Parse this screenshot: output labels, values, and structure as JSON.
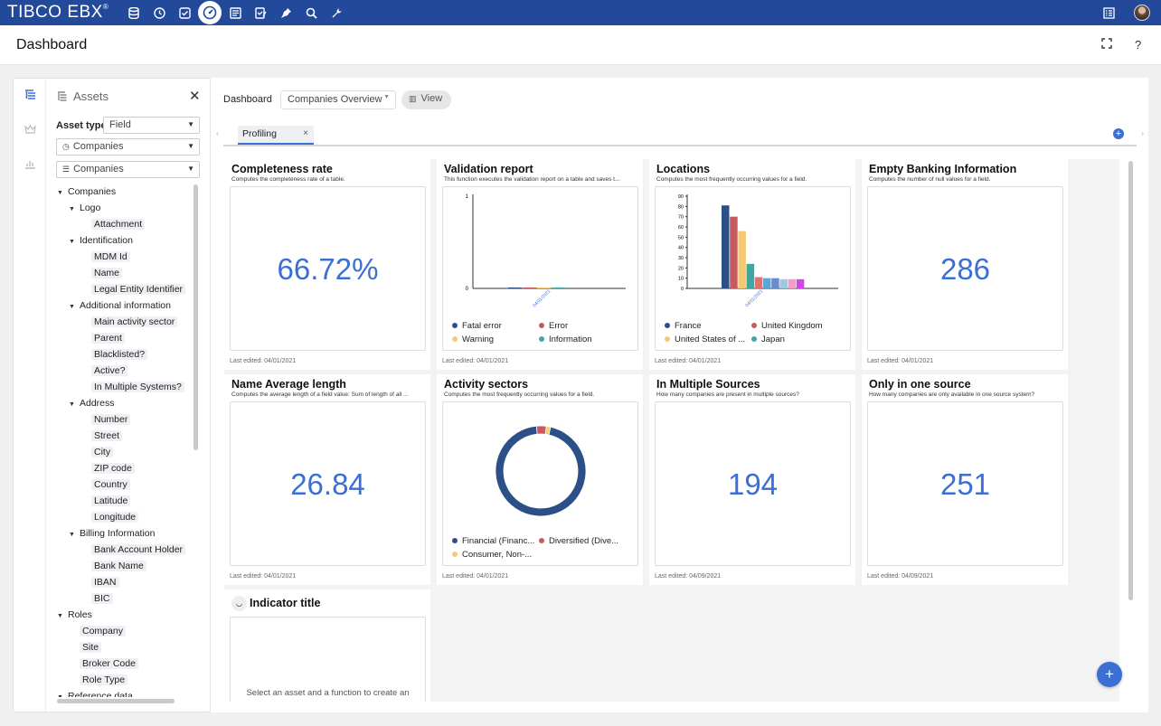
{
  "app": {
    "brand": "TIBCO EBX",
    "brand_mark": "®"
  },
  "topbar": {
    "icons": [
      "database-icon",
      "clock-icon",
      "checklist-icon",
      "dashboard-icon",
      "data-list-icon",
      "edit-check-icon",
      "plugin-icon",
      "search-icon",
      "wrench-icon"
    ],
    "right_icons": [
      "tasks-icon",
      "avatar"
    ],
    "active": "dashboard-icon"
  },
  "header": {
    "title": "Dashboard",
    "icons": [
      "fullscreen-icon",
      "help-icon"
    ],
    "help": "?"
  },
  "assets": {
    "title": "Assets",
    "asset_type_label": "Asset type",
    "asset_type_value": "Field",
    "dataspace_value": "Companies",
    "dataset_value": "Companies",
    "tree": [
      {
        "label": "Companies",
        "level": 0,
        "expand": true
      },
      {
        "label": "Logo",
        "level": 1,
        "expand": true
      },
      {
        "label": "Attachment",
        "level": 2,
        "leaf": true
      },
      {
        "label": "Identification",
        "level": 1,
        "expand": true
      },
      {
        "label": "MDM Id",
        "level": 2,
        "leaf": true
      },
      {
        "label": "Name",
        "level": 2,
        "leaf": true
      },
      {
        "label": "Legal Entity Identifier",
        "level": 2,
        "leaf": true
      },
      {
        "label": "Additional information",
        "level": 1,
        "expand": true
      },
      {
        "label": "Main activity sector",
        "level": 2,
        "leaf": true
      },
      {
        "label": "Parent",
        "level": 2,
        "leaf": true
      },
      {
        "label": "Blacklisted?",
        "level": 2,
        "leaf": true
      },
      {
        "label": "Active?",
        "level": 2,
        "leaf": true
      },
      {
        "label": "In Multiple Systems?",
        "level": 2,
        "leaf": true
      },
      {
        "label": "Address",
        "level": 1,
        "expand": true
      },
      {
        "label": "Number",
        "level": 2,
        "leaf": true
      },
      {
        "label": "Street",
        "level": 2,
        "leaf": true
      },
      {
        "label": "City",
        "level": 2,
        "leaf": true
      },
      {
        "label": "ZIP code",
        "level": 2,
        "leaf": true
      },
      {
        "label": "Country",
        "level": 2,
        "leaf": true
      },
      {
        "label": "Latitude",
        "level": 2,
        "leaf": true
      },
      {
        "label": "Longitude",
        "level": 2,
        "leaf": true
      },
      {
        "label": "Billing Information",
        "level": 1,
        "expand": true
      },
      {
        "label": "Bank Account Holder",
        "level": 2,
        "leaf": true
      },
      {
        "label": "Bank Name",
        "level": 2,
        "leaf": true
      },
      {
        "label": "IBAN",
        "level": 2,
        "leaf": true
      },
      {
        "label": "BIC",
        "level": 2,
        "leaf": true
      },
      {
        "label": "Roles",
        "level": 0,
        "expand": true
      },
      {
        "label": "Company",
        "level": 1,
        "leaf": true
      },
      {
        "label": "Site",
        "level": 1,
        "leaf": true
      },
      {
        "label": "Broker Code",
        "level": 1,
        "leaf": true
      },
      {
        "label": "Role Type",
        "level": 1,
        "leaf": true
      },
      {
        "label": "Reference data",
        "level": 0,
        "expand": true
      }
    ]
  },
  "toolbar": {
    "dashboard_label": "Dashboard",
    "dashboard_select": "Companies Overview",
    "view_label": "View"
  },
  "tabs": [
    {
      "label": "Profiling",
      "close": "×"
    }
  ],
  "accent": "#3b6fd4",
  "cards": {
    "completeness": {
      "title": "Completeness rate",
      "desc": "Computes the completeness rate of a table.",
      "value": "66.72%",
      "edited": "Last edited: 04/01/2021"
    },
    "validation": {
      "title": "Validation report",
      "desc": "This function executes the validation report on a table and saves t...",
      "edited": "Last edited: 04/01/2021",
      "y_ticks": [
        "1",
        "0"
      ],
      "x_tick": "04/01/2021",
      "legend": [
        {
          "label": "Fatal error",
          "color": "#2b4f87"
        },
        {
          "label": "Error",
          "color": "#c45b63"
        },
        {
          "label": "Warning",
          "color": "#f5c976"
        },
        {
          "label": "Information",
          "color": "#41a6a0"
        }
      ]
    },
    "locations": {
      "title": "Locations",
      "desc": "Computes the most frequently occurring values for a field.",
      "edited": "Last edited: 04/01/2021",
      "legend": [
        {
          "label": "France",
          "color": "#2b4f87"
        },
        {
          "label": "United Kingdom",
          "color": "#c45b63"
        },
        {
          "label": "United States of ...",
          "color": "#f5c976"
        },
        {
          "label": "Japan",
          "color": "#41a6a0"
        }
      ]
    },
    "empty_banking": {
      "title": "Empty Banking Information",
      "desc": "Computes the number of null values for a field.",
      "value": "286",
      "edited": "Last edited: 04/01/2021"
    },
    "name_avg": {
      "title": "Name Average length",
      "desc": "Computes the average length of a field value: Sum of length of all ...",
      "value": "26.84",
      "edited": "Last edited: 04/01/2021"
    },
    "activity": {
      "title": "Activity sectors",
      "desc": "Computes the most frequently occurring values for a field.",
      "edited": "Last edited: 04/01/2021",
      "legend": [
        {
          "label": "Financial (Financ...",
          "color": "#2b4f87"
        },
        {
          "label": "Diversified (Dive...",
          "color": "#c45b63"
        },
        {
          "label": "Consumer, Non-...",
          "color": "#f5c976"
        }
      ]
    },
    "multi_sources": {
      "title": "In Multiple Sources",
      "desc": "How many companies are present in multiple sources?",
      "value": "194",
      "edited": "Last edited: 04/09/2021"
    },
    "one_source": {
      "title": "Only in one source",
      "desc": "How many companies are only available in one source system?",
      "value": "251",
      "edited": "Last edited: 04/09/2021"
    },
    "indicator": {
      "title": "Indicator title",
      "placeholder": "Select an asset and a function to create an"
    }
  },
  "chart_data": [
    {
      "type": "bar",
      "chart": "validation",
      "categories": [
        "04/01/2021"
      ],
      "series": [
        {
          "name": "Fatal error",
          "values": [
            0
          ]
        },
        {
          "name": "Error",
          "values": [
            0
          ]
        },
        {
          "name": "Warning",
          "values": [
            0
          ]
        },
        {
          "name": "Information",
          "values": [
            0
          ]
        }
      ],
      "ylim": [
        0,
        1
      ],
      "y_ticks": [
        0,
        1
      ]
    },
    {
      "type": "bar",
      "chart": "locations",
      "categories": [
        "04/01/2021"
      ],
      "y_ticks": [
        0,
        10,
        20,
        30,
        40,
        50,
        60,
        70,
        80,
        90
      ],
      "ylim": [
        0,
        90
      ],
      "series": [
        {
          "name": "France",
          "values": [
            81
          ]
        },
        {
          "name": "United Kingdom",
          "values": [
            70
          ]
        },
        {
          "name": "United States of ...",
          "values": [
            56
          ]
        },
        {
          "name": "Japan",
          "values": [
            24
          ]
        },
        {
          "values": [
            11
          ]
        },
        {
          "values": [
            10
          ]
        },
        {
          "values": [
            10
          ]
        },
        {
          "values": [
            9
          ]
        },
        {
          "values": [
            9
          ]
        },
        {
          "values": [
            9
          ]
        }
      ],
      "colors": [
        "#2b4f87",
        "#c45b63",
        "#f5c976",
        "#41a6a0",
        "#e66f6f",
        "#5aa8d8",
        "#6b8bd0",
        "#9ec8e0",
        "#f0a0c0",
        "#d046e0"
      ]
    },
    {
      "type": "pie",
      "chart": "activity",
      "donut": true,
      "slices": [
        {
          "label": "Financial (Financ...",
          "value": 95
        },
        {
          "label": "Diversified (Dive...",
          "value": 3.5
        },
        {
          "label": "Consumer, Non-...",
          "value": 1.5
        }
      ],
      "colors": [
        "#2b4f87",
        "#c45b63",
        "#f5c976"
      ]
    }
  ]
}
